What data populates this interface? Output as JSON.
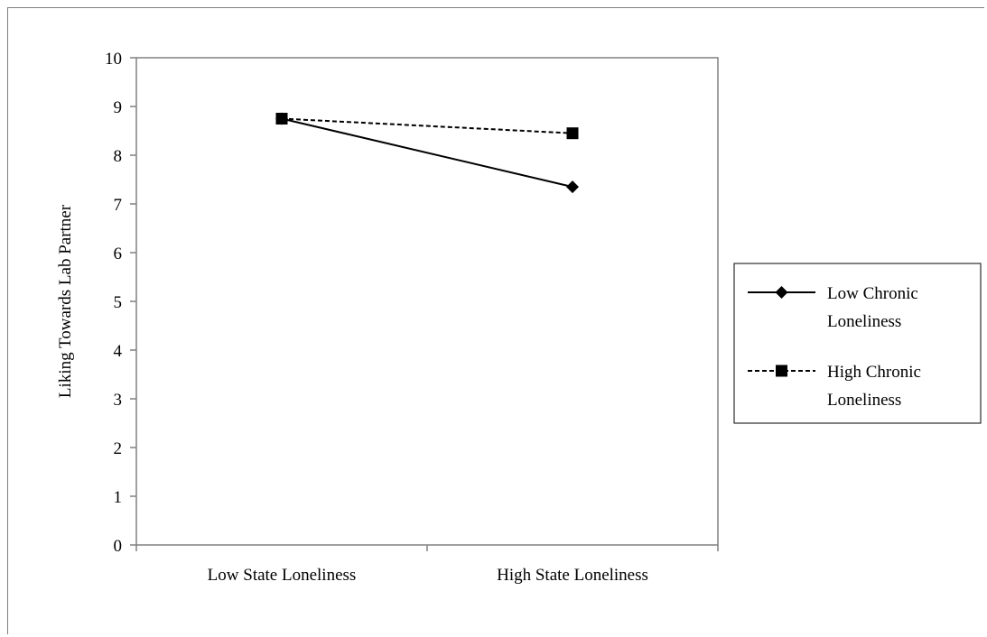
{
  "chart_data": {
    "type": "line",
    "title": "",
    "xlabel": "",
    "ylabel": "Liking Towards Lab Partner",
    "categories": [
      "Low State Loneliness",
      "High State Loneliness"
    ],
    "ylim": [
      0,
      10
    ],
    "yticks": [
      0,
      1,
      2,
      3,
      4,
      5,
      6,
      7,
      8,
      9,
      10
    ],
    "grid": false,
    "legend_position": "right",
    "series": [
      {
        "name": "Low Chronic Loneliness",
        "name_lines": [
          "Low Chronic",
          "Loneliness"
        ],
        "values": [
          8.75,
          7.35
        ],
        "marker": "diamond",
        "line_style": "solid",
        "color": "#000000"
      },
      {
        "name": "High Chronic Loneliness",
        "name_lines": [
          "High Chronic",
          "Loneliness"
        ],
        "values": [
          8.75,
          8.45
        ],
        "marker": "square",
        "line_style": "dashed",
        "color": "#000000"
      }
    ]
  }
}
